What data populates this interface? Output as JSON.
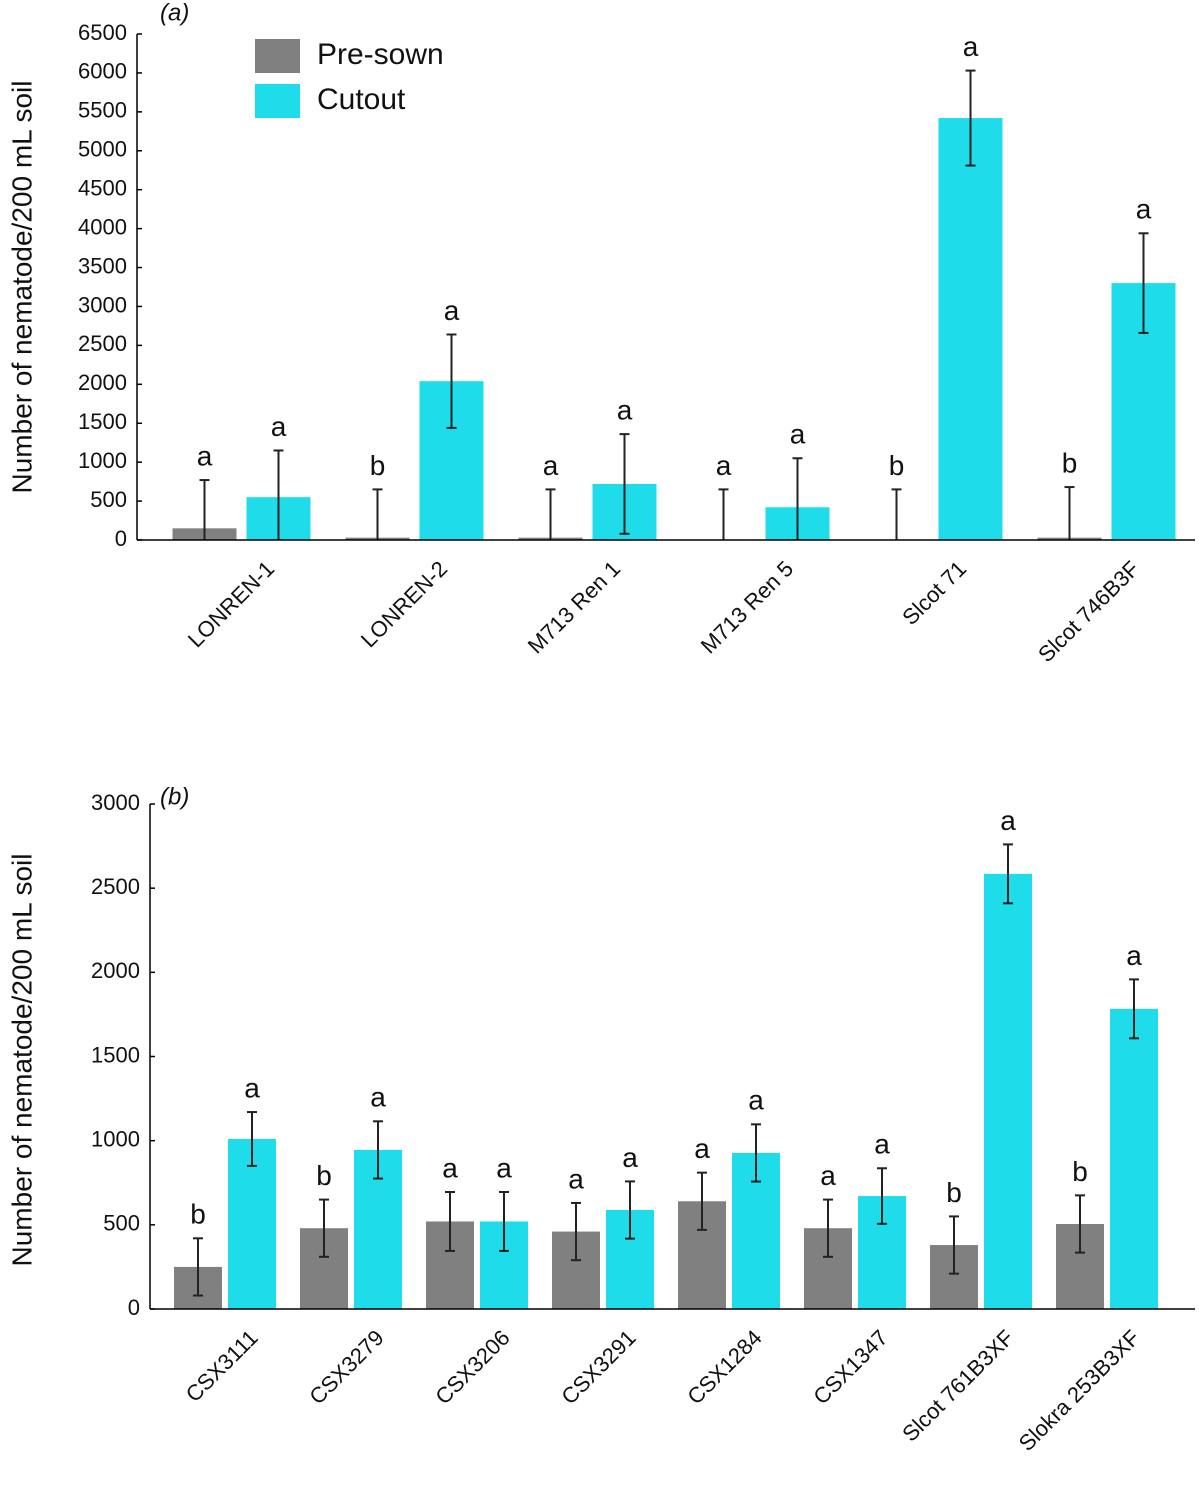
{
  "chart_data": [
    {
      "type": "bar",
      "label": "(a)",
      "ylabel": "Number of nematode/200 mL soil",
      "categories": [
        "LONREN-1",
        "LONREN-2",
        "M713 Ren 1",
        "M713 Ren 5",
        "Slcot 71",
        "Slcot 746B3F"
      ],
      "series": [
        {
          "name": "Pre-sown",
          "color": "#808080",
          "values": [
            150,
            30,
            30,
            0,
            0,
            30
          ],
          "errors": [
            620,
            620,
            620,
            650,
            650,
            650
          ],
          "letters": [
            "a",
            "b",
            "a",
            "a",
            "b",
            "b"
          ]
        },
        {
          "name": "Cutout",
          "color": "#1fdcea",
          "values": [
            550,
            2040,
            720,
            420,
            5420,
            3300
          ],
          "errors": [
            600,
            600,
            640,
            630,
            610,
            640
          ],
          "letters": [
            "a",
            "a",
            "a",
            "a",
            "a",
            "a"
          ]
        }
      ],
      "ylim": [
        0,
        6500
      ],
      "yticks": [
        0,
        500,
        1000,
        1500,
        2000,
        2500,
        3000,
        3500,
        4000,
        4500,
        5000,
        5500,
        6000,
        6500
      ],
      "legend": "upper left"
    },
    {
      "type": "bar",
      "label": "(b)",
      "ylabel": "Number of nematode/200 mL soil",
      "categories": [
        "CSX3111",
        "CSX3279",
        "CSX3206",
        "CSX3291",
        "CSX1284",
        "CSX1347",
        "Slcot 761B3XF",
        "Slokra 253B3XF"
      ],
      "series": [
        {
          "color": "#808080",
          "values": [
            250,
            480,
            520,
            460,
            640,
            480,
            380,
            505
          ],
          "errors": [
            170,
            170,
            175,
            170,
            170,
            170,
            170,
            170
          ],
          "letters": [
            "b",
            "b",
            "a",
            "a",
            "a",
            "a",
            "b",
            "b"
          ]
        },
        {
          "color": "#1fdcea",
          "values": [
            1010,
            945,
            520,
            588,
            927,
            671,
            2585,
            1783
          ],
          "errors": [
            160,
            170,
            175,
            170,
            170,
            165,
            175,
            175
          ],
          "letters": [
            "a",
            "a",
            "a",
            "a",
            "a",
            "a",
            "a",
            "a"
          ]
        }
      ],
      "ylim": [
        0,
        3000
      ],
      "yticks": [
        0,
        500,
        1000,
        1500,
        2000,
        2500,
        3000
      ]
    }
  ]
}
